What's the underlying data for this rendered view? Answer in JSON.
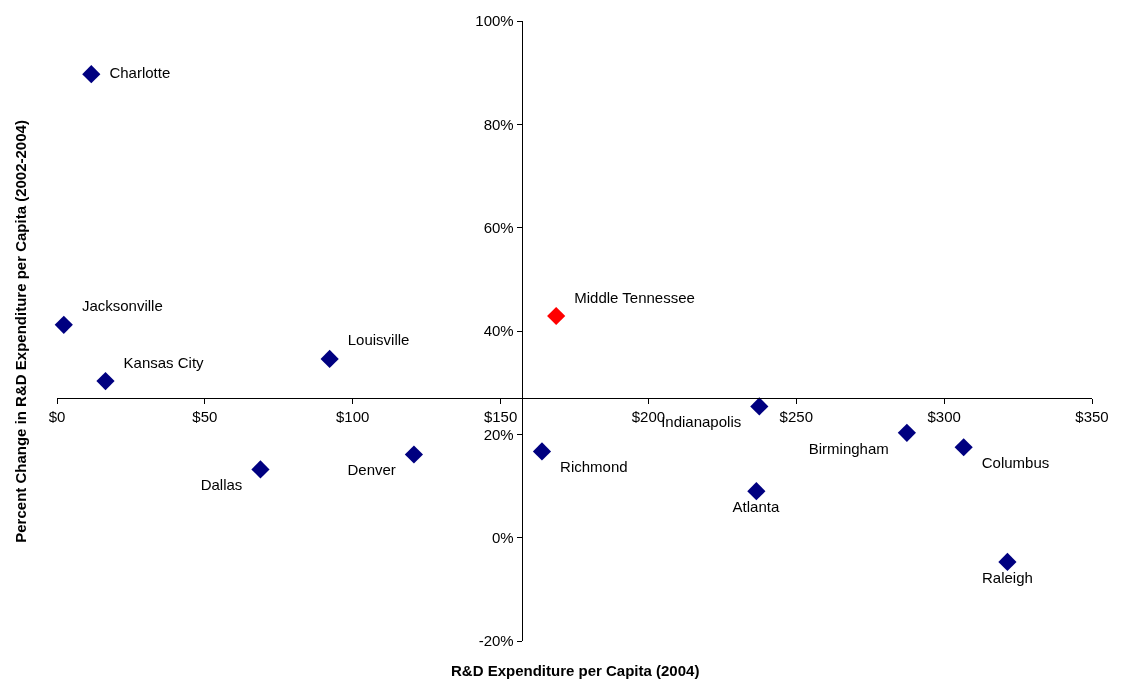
{
  "chart_data": {
    "type": "scatter",
    "xlabel": "R&D Expenditure per Capita (2004)",
    "ylabel": "Percent Change in R&D Expenditure per Capita (2002-2004)",
    "xlim": [
      0,
      350
    ],
    "xticks": [
      {
        "value": 0,
        "label": "$0"
      },
      {
        "value": 50,
        "label": "$50"
      },
      {
        "value": 100,
        "label": "$100"
      },
      {
        "value": 150,
        "label": "$150"
      },
      {
        "value": 200,
        "label": "$200"
      },
      {
        "value": 250,
        "label": "$250"
      },
      {
        "value": 300,
        "label": "$300"
      },
      {
        "value": 350,
        "label": "$350"
      }
    ],
    "ylim": [
      -20,
      100
    ],
    "yticks": [
      {
        "value": -20,
        "label": "-20%"
      },
      {
        "value": 0,
        "label": "0%"
      },
      {
        "value": 20,
        "label": "20%"
      },
      {
        "value": 40,
        "label": "40%"
      },
      {
        "value": 60,
        "label": "60%"
      },
      {
        "value": 80,
        "label": "80%"
      },
      {
        "value": 100,
        "label": "100%"
      }
    ],
    "marker": "diamond",
    "series": [
      {
        "color": "#000080",
        "x": [
          11.6,
          2.3,
          16.4,
          92.2,
          68.8,
          120.7,
          164.0,
          237.5,
          236.5,
          287.4,
          306.6,
          321.4
        ],
        "values": [
          89.7,
          41.2,
          30.3,
          34.6,
          13.2,
          16.1,
          16.7,
          25.4,
          9.0,
          20.3,
          17.5,
          -4.7
        ],
        "value_labels": [
          "Charlotte",
          "Jacksonville",
          "Kansas City",
          "Louisville",
          "Dallas",
          "Denver",
          "Richmond",
          "Indianapolis",
          "Atlanta",
          "Birmingham",
          "Columbus",
          "Raleigh"
        ]
      },
      {
        "color": "#ff0000",
        "x": [
          168.8
        ],
        "values": [
          42.9
        ],
        "value_labels": [
          "Middle Tennessee"
        ]
      }
    ]
  }
}
